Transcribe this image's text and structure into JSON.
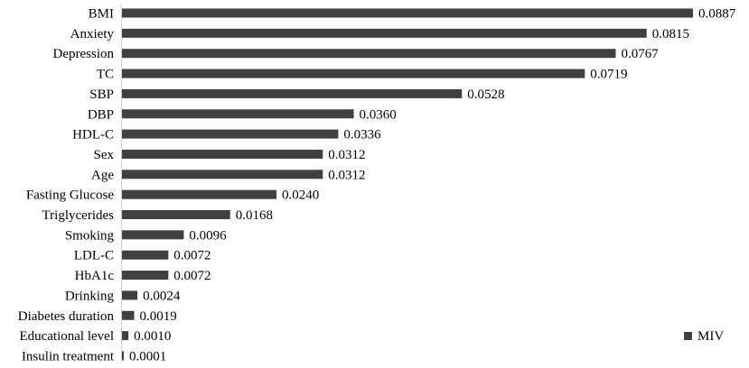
{
  "chart_data": {
    "type": "bar",
    "orientation": "horizontal",
    "title": "",
    "xlabel": "",
    "ylabel": "",
    "categories": [
      "BMI",
      "Anxiety",
      "Depression",
      "TC",
      "SBP",
      "DBP",
      "HDL-C",
      "Sex",
      "Age",
      "Fasting Glucose",
      "Triglycerides",
      "Smoking",
      "LDL-C",
      "HbA1c",
      "Drinking",
      "Diabetes duration",
      "Educational level",
      "Insulin treatment"
    ],
    "series": [
      {
        "name": "MIV",
        "values": [
          0.0887,
          0.0815,
          0.0767,
          0.0719,
          0.0528,
          0.036,
          0.0336,
          0.0312,
          0.0312,
          0.024,
          0.0168,
          0.0096,
          0.0072,
          0.0072,
          0.0024,
          0.0019,
          0.001,
          0.0001
        ],
        "value_labels": [
          "0.0887",
          "0.0815",
          "0.0767",
          "0.0719",
          "0.0528",
          "0.0360",
          "0.0336",
          "0.0312",
          "0.0312",
          "0.0240",
          "0.0168",
          "0.0096",
          "0.0072",
          "0.0072",
          "0.0024",
          "0.0019",
          "0.0010",
          "0.0001"
        ],
        "color": "#404040"
      }
    ],
    "xlim": [
      0,
      0.0887
    ],
    "grid": false,
    "legend_placement": "bottom-right",
    "legend": {
      "label": "MIV"
    }
  }
}
